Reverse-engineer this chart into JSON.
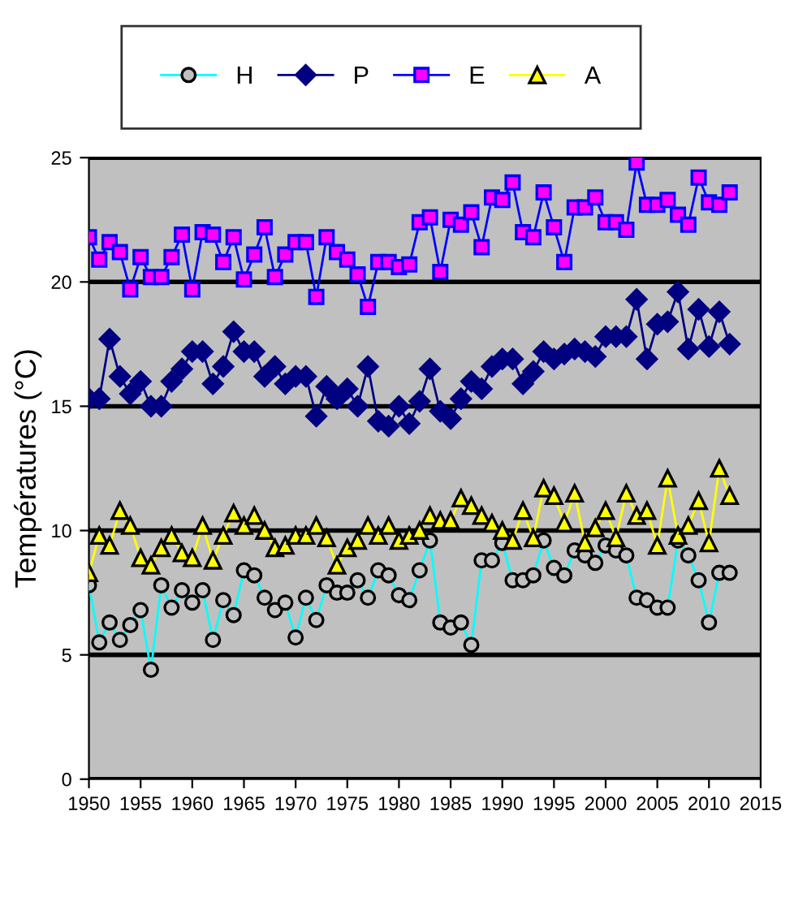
{
  "chart_data": {
    "type": "line",
    "ylabel": "Températures (°C)",
    "x": [
      1950,
      1951,
      1952,
      1953,
      1954,
      1955,
      1956,
      1957,
      1958,
      1959,
      1960,
      1961,
      1962,
      1963,
      1964,
      1965,
      1966,
      1967,
      1968,
      1969,
      1970,
      1971,
      1972,
      1973,
      1974,
      1975,
      1976,
      1977,
      1978,
      1979,
      1980,
      1981,
      1982,
      1983,
      1984,
      1985,
      1986,
      1987,
      1988,
      1989,
      1990,
      1991,
      1992,
      1993,
      1994,
      1995,
      1996,
      1997,
      1998,
      1999,
      2000,
      2001,
      2002,
      2003,
      2004,
      2005,
      2006,
      2007,
      2008,
      2009,
      2010,
      2011,
      2012
    ],
    "xlim": [
      1950,
      2015
    ],
    "xticks": [
      1950,
      1955,
      1960,
      1965,
      1970,
      1975,
      1980,
      1985,
      1990,
      1995,
      2000,
      2005,
      2010,
      2015
    ],
    "ylim": [
      0,
      25
    ],
    "yticks": [
      0,
      5,
      10,
      15,
      20,
      25
    ],
    "grid": "y",
    "legend": "top",
    "line_style": "solid",
    "series": [
      {
        "name": "H",
        "color": "#00ffff",
        "marker": "circle",
        "values": [
          7.8,
          5.5,
          6.3,
          5.6,
          6.2,
          6.8,
          4.4,
          7.8,
          6.9,
          7.6,
          7.1,
          7.6,
          5.6,
          7.2,
          6.6,
          8.4,
          8.2,
          7.3,
          6.8,
          7.1,
          5.7,
          7.3,
          6.4,
          7.8,
          7.5,
          7.5,
          8.0,
          7.3,
          8.4,
          8.2,
          7.4,
          7.2,
          8.4,
          9.6,
          6.3,
          6.1,
          6.3,
          5.4,
          8.8,
          8.8,
          9.5,
          8.0,
          8.0,
          8.2,
          9.6,
          8.5,
          8.2,
          9.2,
          9.0,
          8.7,
          9.4,
          9.2,
          9.0,
          7.3,
          7.2,
          6.9,
          6.9,
          9.6,
          9.0,
          8.0,
          6.3,
          8.3,
          8.3
        ]
      },
      {
        "name": "P",
        "color": "#000080",
        "marker": "diamond",
        "values": [
          15.3,
          15.3,
          17.7,
          16.2,
          15.5,
          16.0,
          15.0,
          15.0,
          16.0,
          16.5,
          17.2,
          17.2,
          15.9,
          16.6,
          18.0,
          17.2,
          17.2,
          16.2,
          16.6,
          15.9,
          16.2,
          16.2,
          14.6,
          15.8,
          15.3,
          15.7,
          15.0,
          16.6,
          14.4,
          14.2,
          15.0,
          14.3,
          15.2,
          16.5,
          14.8,
          14.5,
          15.3,
          16.0,
          15.7,
          16.6,
          16.9,
          16.9,
          15.9,
          16.4,
          17.2,
          16.9,
          17.1,
          17.3,
          17.2,
          17.0,
          17.8,
          17.8,
          17.8,
          19.3,
          16.9,
          18.3,
          18.4,
          19.6,
          17.3,
          18.9,
          17.4,
          18.8,
          17.5
        ]
      },
      {
        "name": "E",
        "color": "#0000ff",
        "marker": "square",
        "values": [
          21.8,
          20.9,
          21.6,
          21.2,
          19.7,
          21.0,
          20.2,
          20.2,
          21.0,
          21.9,
          19.7,
          22.0,
          21.9,
          20.8,
          21.8,
          20.1,
          21.1,
          22.2,
          20.2,
          21.1,
          21.6,
          21.6,
          19.4,
          21.8,
          21.2,
          20.9,
          20.3,
          19.0,
          20.8,
          20.8,
          20.6,
          20.7,
          22.4,
          22.6,
          20.4,
          22.5,
          22.3,
          22.8,
          21.4,
          23.4,
          23.3,
          24.0,
          22.0,
          21.8,
          23.6,
          22.2,
          20.8,
          23.0,
          23.0,
          23.4,
          22.4,
          22.4,
          22.1,
          24.8,
          23.1,
          23.1,
          23.3,
          22.7,
          22.3,
          24.2,
          23.2,
          23.1,
          23.6
        ]
      },
      {
        "name": "A",
        "color": "#ffff00",
        "marker": "triangle",
        "values": [
          8.3,
          9.8,
          9.4,
          10.8,
          10.2,
          8.9,
          8.6,
          9.3,
          9.8,
          9.1,
          8.9,
          10.2,
          8.8,
          9.8,
          10.7,
          10.2,
          10.6,
          10.0,
          9.3,
          9.4,
          9.8,
          9.8,
          10.2,
          9.7,
          8.6,
          9.3,
          9.6,
          10.2,
          9.8,
          10.2,
          9.6,
          9.8,
          10.0,
          10.6,
          10.4,
          10.4,
          11.3,
          11.0,
          10.6,
          10.3,
          10.0,
          9.6,
          10.8,
          9.7,
          11.7,
          11.4,
          10.3,
          11.5,
          9.5,
          10.1,
          10.8,
          9.7,
          11.5,
          10.6,
          10.8,
          9.4,
          12.1,
          9.8,
          10.2,
          11.2,
          9.5,
          12.5,
          11.4
        ]
      }
    ]
  }
}
